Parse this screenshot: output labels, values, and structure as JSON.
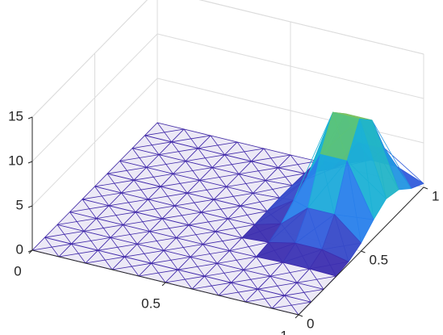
{
  "chart_data": {
    "type": "surface",
    "x": [
      0,
      0.1,
      0.2,
      0.3,
      0.4,
      0.5,
      0.6,
      0.7,
      0.8,
      0.9,
      1
    ],
    "y": [
      0,
      0.1,
      0.2,
      0.3,
      0.4,
      0.5,
      0.6,
      0.7,
      0.8,
      0.9,
      1
    ],
    "z": [
      [
        0,
        0,
        0,
        0,
        0,
        0,
        0,
        0,
        0,
        0,
        0
      ],
      [
        0,
        0,
        0,
        0,
        0,
        0,
        0,
        0,
        0,
        0,
        0
      ],
      [
        0,
        0,
        0,
        0,
        0,
        0,
        0,
        0,
        0.01,
        0.01,
        0
      ],
      [
        0,
        0,
        0,
        0,
        0,
        0,
        0,
        0.04,
        0.14,
        0.14,
        0.04
      ],
      [
        0,
        0,
        0,
        0,
        0,
        0,
        0.02,
        0.23,
        0.88,
        0.88,
        0.23
      ],
      [
        0,
        0,
        0,
        0,
        0,
        0,
        0.06,
        0.9,
        3.4,
        3.4,
        0.9
      ],
      [
        0,
        0,
        0,
        0,
        0,
        0,
        0.15,
        2.1,
        8.0,
        8.0,
        2.1
      ],
      [
        0,
        0,
        0,
        0,
        0,
        0,
        0.21,
        3.0,
        11.3,
        11.3,
        3.0
      ],
      [
        0,
        0,
        0,
        0,
        0,
        0,
        0.18,
        2.6,
        9.7,
        9.7,
        2.6
      ],
      [
        0,
        0,
        0,
        0,
        0,
        0,
        0.09,
        1.3,
        5.1,
        5.1,
        1.3
      ],
      [
        0,
        0,
        0,
        0,
        0,
        0,
        0.03,
        0.42,
        1.6,
        1.6,
        0.42
      ]
    ],
    "xlim": [
      0,
      1
    ],
    "ylim": [
      0,
      1
    ],
    "zlim": [
      0,
      15
    ],
    "xticks": [
      0,
      0.5,
      1
    ],
    "yticks": [
      0,
      0.5,
      1
    ],
    "zticks": [
      0,
      5,
      10,
      15
    ],
    "grid": true,
    "colormap": [
      "#3e26a8",
      "#2c73f0",
      "#1ab0d7",
      "#3dc48d",
      "#c6c02f",
      "#f9fb0e"
    ]
  }
}
